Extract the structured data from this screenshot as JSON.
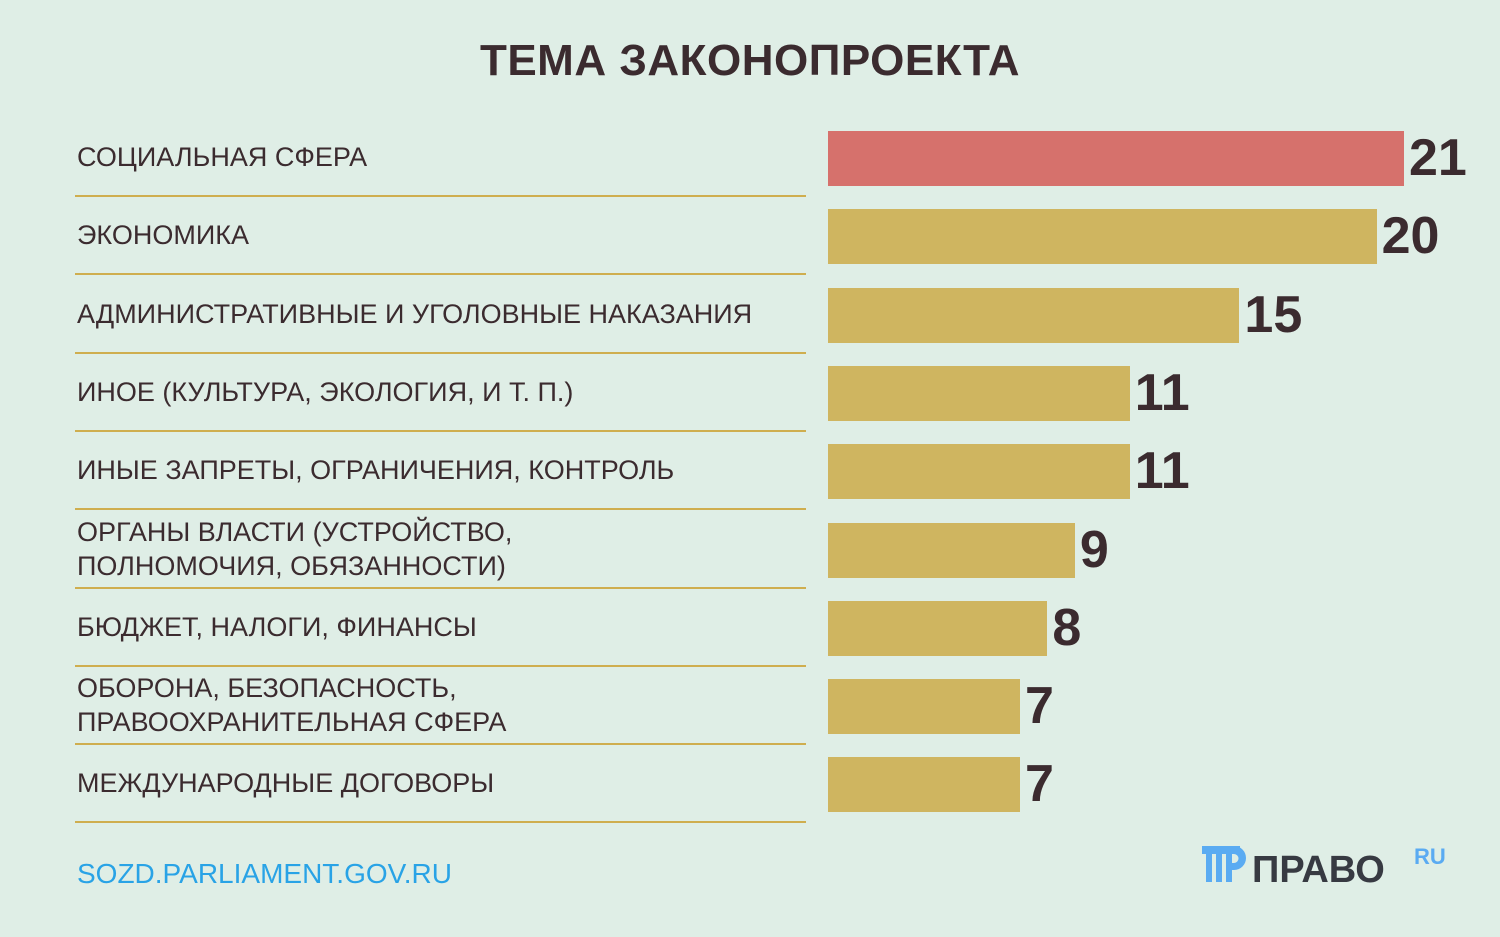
{
  "chart_data": {
    "type": "bar",
    "orientation": "horizontal",
    "title": "ТЕМА ЗАКОНОПРОЕКТА",
    "categories": [
      "СОЦИАЛЬНАЯ СФЕРА",
      "ЭКОНОМИКА",
      "АДМИНИСТРАТИВНЫЕ И УГОЛОВНЫЕ НАКАЗАНИЯ",
      "ИНОЕ (КУЛЬТУРА, ЭКОЛОГИЯ, И Т. П.)",
      "ИНЫЕ ЗАПРЕТЫ, ОГРАНИЧЕНИЯ, КОНТРОЛЬ",
      "ОРГАНЫ ВЛАСТИ (УСТРОЙСТВО, ПОЛНОМОЧИЯ, ОБЯЗАННОСТИ)",
      "БЮДЖЕТ, НАЛОГИ, ФИНАНСЫ",
      "ОБОРОНА, БЕЗОПАСНОСТЬ, ПРАВООХРАНИТЕЛЬНАЯ СФЕРА",
      "МЕЖДУНАРОДНЫЕ ДОГОВОРЫ"
    ],
    "values": [
      21,
      20,
      15,
      11,
      11,
      9,
      8,
      7,
      7
    ],
    "xlim": [
      0,
      21
    ],
    "colors": {
      "highlight": "#d6716c",
      "default": "#cfb560"
    },
    "grid": false,
    "legend": "none"
  },
  "footer": {
    "source": "SOZD.PARLIAMENT.GOV.RU",
    "logo_text": "ПРАВО",
    "logo_suffix": "RU"
  }
}
